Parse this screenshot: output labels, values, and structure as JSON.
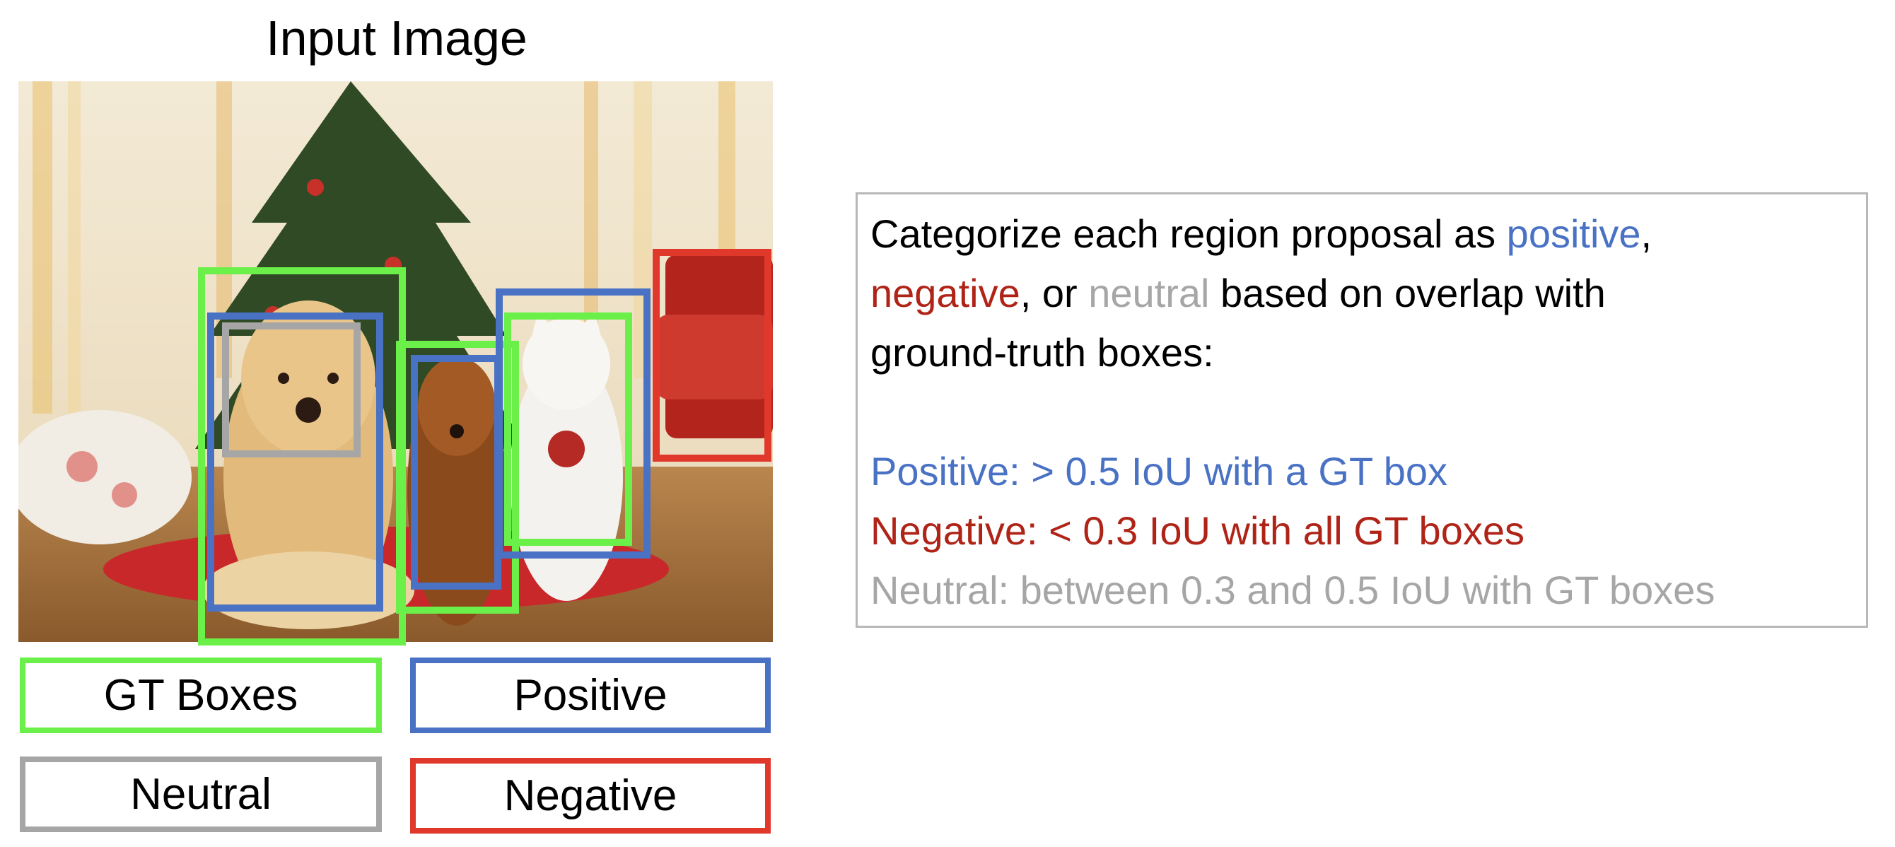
{
  "title": "Input Image",
  "colors": {
    "gt": "#6bf04a",
    "positive": "#4a72c4",
    "neutral": "#a6a6a6",
    "negative": "#e0392b",
    "positive_text": "#4a72c4",
    "negative_text": "#b02418",
    "neutral_text": "#a6a6a6"
  },
  "legend": {
    "gt": "GT Boxes",
    "positive": "Positive",
    "neutral": "Neutral",
    "negative": "Negative"
  },
  "panel": {
    "line1_a": "Categorize each region proposal as ",
    "positive_word": "positive",
    "line1_b": ",",
    "negative_word": "negative",
    "line2_a": ", or ",
    "neutral_word": "neutral",
    "line2_b": " based on overlap with",
    "line3": "ground-truth boxes:",
    "rule_positive": "Positive: > 0.5 IoU with a GT box",
    "rule_negative": "Negative: < 0.3 IoU with all GT boxes",
    "rule_neutral": "Neutral: between 0.3 and 0.5 IoU with GT boxes"
  }
}
